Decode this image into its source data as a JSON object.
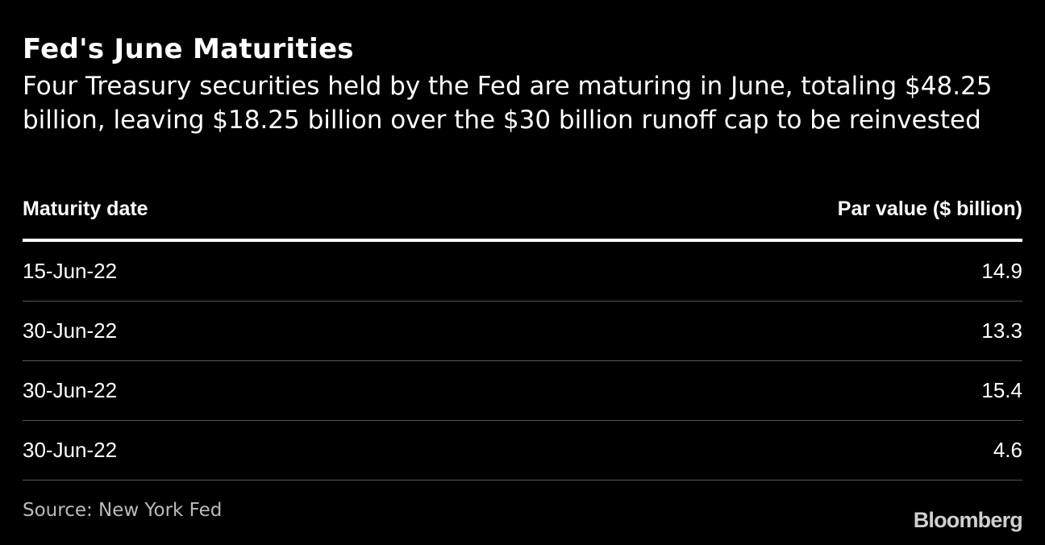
{
  "chart_data": {
    "type": "table",
    "title": "Fed's June Maturities",
    "subtitle": "Four Treasury securities held by the Fed are maturing in June, totaling $48.25 billion, leaving $18.25 billion over the $30 billion runoff cap to be reinvested",
    "columns": [
      "Maturity date",
      "Par value ($ billion)"
    ],
    "rows": [
      {
        "date": "15-Jun-22",
        "value": "14.9"
      },
      {
        "date": "30-Jun-22",
        "value": "13.3"
      },
      {
        "date": "30-Jun-22",
        "value": "15.4"
      },
      {
        "date": "30-Jun-22",
        "value": "4.6"
      }
    ],
    "source": "Source: New York Fed"
  },
  "branding": {
    "logo_text": "Bloomberg"
  },
  "colors": {
    "background": "#000000",
    "text": "#ffffff",
    "row_divider": "#555555"
  }
}
